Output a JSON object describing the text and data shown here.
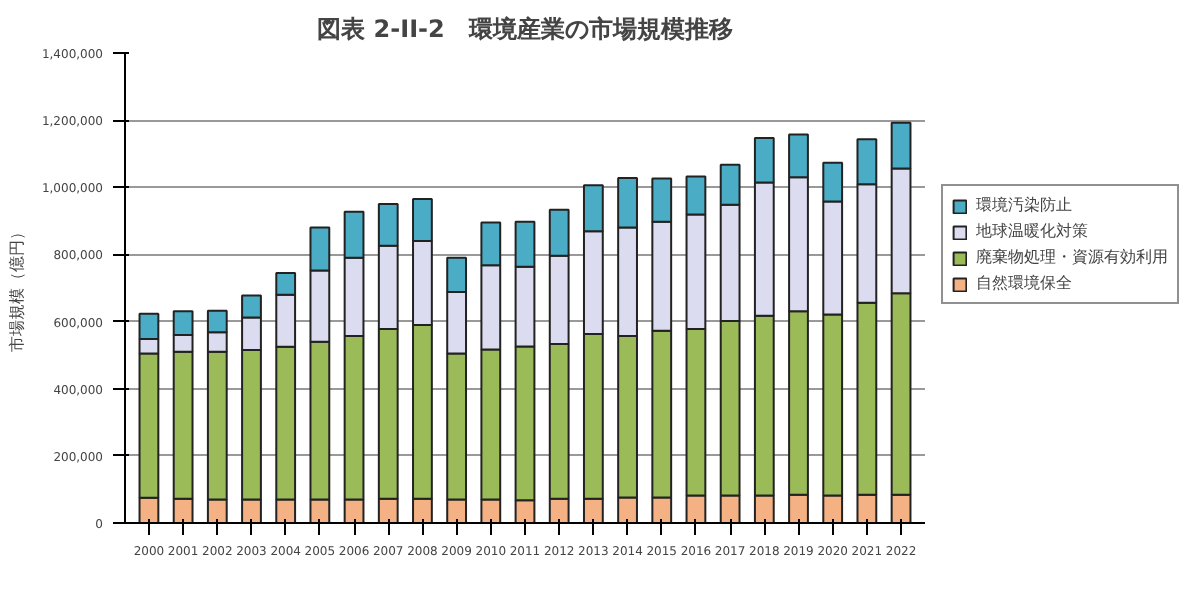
{
  "chart_data": {
    "type": "bar",
    "stacked": true,
    "title": "図表 2-II-2　環境産業の市場規模推移",
    "ylabel": "市場規模（億円）",
    "categories": [
      "2000",
      "2001",
      "2002",
      "2003",
      "2004",
      "2005",
      "2006",
      "2007",
      "2008",
      "2009",
      "2010",
      "2011",
      "2012",
      "2013",
      "2014",
      "2015",
      "2016",
      "2017",
      "2018",
      "2019",
      "2020",
      "2021",
      "2022"
    ],
    "series": [
      {
        "name": "自然環境保全",
        "color": "#f4b183",
        "values": [
          75000,
          72000,
          70000,
          70000,
          70000,
          70000,
          70000,
          72000,
          72000,
          70000,
          70000,
          68000,
          72000,
          72000,
          76000,
          76000,
          82000,
          82000,
          82000,
          84000,
          82000,
          84000,
          84000
        ]
      },
      {
        "name": "廃棄物処理・資源有効利用",
        "color": "#9bbb59",
        "values": [
          430000,
          438000,
          440000,
          445000,
          455000,
          470000,
          487000,
          506000,
          518000,
          435000,
          447000,
          458000,
          461000,
          491000,
          481000,
          497000,
          496000,
          520000,
          535000,
          547000,
          539000,
          572000,
          600000
        ]
      },
      {
        "name": "地球温暖化対策",
        "color": "#dcdcf0",
        "values": [
          43000,
          50000,
          58000,
          97000,
          155000,
          212000,
          233000,
          248000,
          250000,
          183000,
          251000,
          237000,
          263000,
          306000,
          323000,
          324000,
          341000,
          346000,
          397000,
          399000,
          337000,
          353000,
          372000
        ]
      },
      {
        "name": "環境汚染防止",
        "color": "#4bacc6",
        "values": [
          75000,
          71000,
          64000,
          66000,
          65000,
          128000,
          137000,
          124000,
          125000,
          102000,
          127000,
          134000,
          137000,
          137000,
          148000,
          129000,
          113000,
          119000,
          133000,
          127000,
          115000,
          134000,
          136000
        ]
      }
    ],
    "ylim": [
      0,
      1400000
    ],
    "yticks": [
      {
        "value": 0,
        "label": "0"
      },
      {
        "value": 200000,
        "label": "200,000"
      },
      {
        "value": 400000,
        "label": "400,000"
      },
      {
        "value": 600000,
        "label": "600,000"
      },
      {
        "value": 800000,
        "label": "800,000"
      },
      {
        "value": 1000000,
        "label": "1,000,000"
      },
      {
        "value": 1200000,
        "label": "1,200,000"
      },
      {
        "value": 1400000,
        "label": "1,400,000"
      }
    ],
    "grid": "y",
    "legend": "right"
  }
}
